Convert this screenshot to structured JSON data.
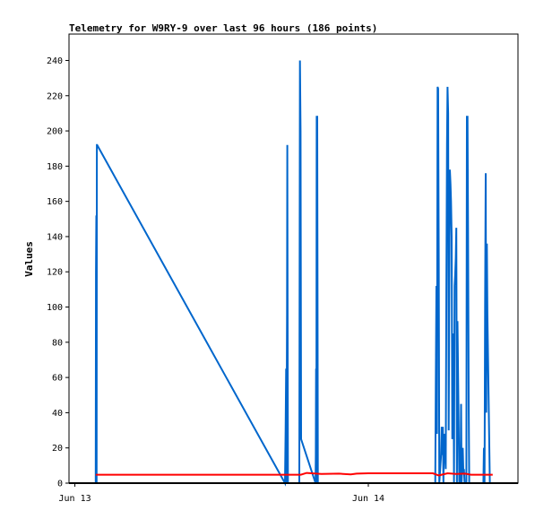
{
  "chart_data": {
    "type": "line",
    "title": "Telemetry for W9RY-9 over last 96 hours (186 points)",
    "xlabel": "",
    "ylabel": "Values",
    "ylim": [
      0,
      255
    ],
    "yticks": [
      0,
      20,
      40,
      60,
      80,
      100,
      120,
      140,
      160,
      180,
      200,
      220,
      240
    ],
    "xlim": [
      -0.02,
      1.51
    ],
    "x_unit": "days since Jun 13 00:00",
    "xticks": [
      {
        "label": "Jun 13",
        "x": 0
      },
      {
        "label": "Jun 14",
        "x": 1
      }
    ],
    "grid": false,
    "legend": "none",
    "series": [
      {
        "color": "#0066cc",
        "x": [
          0.071,
          0.072,
          0.073,
          0.074,
          0.075,
          0.076,
          0.716,
          0.718,
          0.72,
          0.721,
          0.723,
          0.724,
          0.726,
          0.765,
          0.767,
          0.769,
          0.771,
          0.82,
          0.821,
          0.822,
          0.823,
          0.824,
          0.826,
          0.828,
          1.228,
          1.23,
          1.232,
          1.234,
          1.236,
          1.238,
          1.24,
          1.242,
          1.248,
          1.25,
          1.252,
          1.254,
          1.256,
          1.258,
          1.26,
          1.264,
          1.266,
          1.268,
          1.27,
          1.272,
          1.274,
          1.278,
          1.28,
          1.282,
          1.284,
          1.286,
          1.288,
          1.29,
          1.292,
          1.294,
          1.296,
          1.298,
          1.3,
          1.302,
          1.304,
          1.306,
          1.308,
          1.31,
          1.312,
          1.314,
          1.316,
          1.318,
          1.32,
          1.322,
          1.324,
          1.326,
          1.328,
          1.33,
          1.334,
          1.336,
          1.338,
          1.34,
          1.342,
          1.344,
          1.392,
          1.394,
          1.396,
          1.398,
          1.4,
          1.402,
          1.404,
          1.406,
          1.414,
          1.416,
          1.418,
          1.42,
          1.422,
          1.424
        ],
        "y": [
          0,
          120,
          152,
          0,
          192,
          192,
          0,
          30,
          65,
          0,
          97,
          192,
          0,
          0,
          240,
          200,
          25,
          0,
          16,
          65,
          0,
          208,
          208,
          0,
          0,
          56,
          112,
          28,
          225,
          224,
          128,
          0,
          16,
          32,
          16,
          32,
          0,
          28,
          24,
          8,
          110,
          192,
          225,
          210,
          30,
          178,
          170,
          160,
          140,
          25,
          60,
          85,
          0,
          112,
          118,
          128,
          145,
          0,
          92,
          60,
          30,
          0,
          20,
          0,
          45,
          0,
          10,
          20,
          5,
          8,
          0,
          0,
          0,
          208,
          208,
          145,
          48,
          0,
          0,
          20,
          0,
          100,
          176,
          40,
          136,
          96,
          0,
          0,
          0,
          0,
          0,
          0
        ]
      },
      {
        "color": "#ff0000",
        "x": [
          0.071,
          0.6,
          0.77,
          0.79,
          0.84,
          0.9,
          0.94,
          0.96,
          1.0,
          1.22,
          1.24,
          1.27,
          1.3,
          1.33,
          1.35,
          1.4,
          1.424
        ],
        "y": [
          4.8,
          4.8,
          4.8,
          5.8,
          5.2,
          5.4,
          5.0,
          5.4,
          5.6,
          5.6,
          4.4,
          5.6,
          5.2,
          5.4,
          4.8,
          4.8,
          4.8
        ]
      }
    ]
  }
}
